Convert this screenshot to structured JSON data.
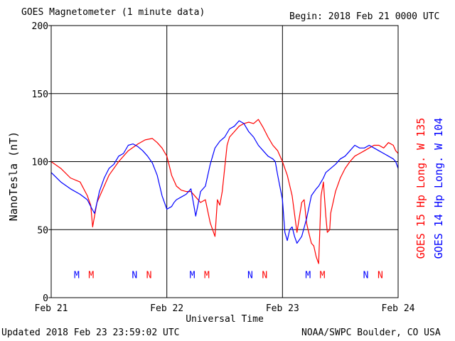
{
  "header": {
    "title": "GOES Magnetometer (1 minute data)",
    "begin": "Begin:  2018 Feb 21 0000 UTC"
  },
  "footer": {
    "updated": "Updated 2018 Feb 23 23:59:02 UTC",
    "source": "NOAA/SWPC Boulder, CO USA"
  },
  "colors": {
    "goes15": "#ff0000",
    "goes14": "#0000ff",
    "grid": "#000000"
  },
  "chart_data": {
    "type": "line",
    "title": "GOES Magnetometer (1 minute data)",
    "xlabel": "Universal Time",
    "ylabel": "NanoTesla (nT)",
    "xlim": [
      0,
      72
    ],
    "ylim": [
      0,
      200
    ],
    "x_unit": "hours since 2018 Feb 21 0000 UTC",
    "x_ticks": [
      {
        "x": 0,
        "label": "Feb 21"
      },
      {
        "x": 24,
        "label": "Feb 22"
      },
      {
        "x": 48,
        "label": "Feb 23"
      },
      {
        "x": 72,
        "label": "Feb 24"
      }
    ],
    "y_ticks": [
      0,
      50,
      100,
      150,
      200
    ],
    "grid": true,
    "series": [
      {
        "name": "GOES 15 Hp  Long. W 135",
        "color": "#ff0000",
        "x": [
          0,
          2,
          4,
          6,
          7.5,
          8.2,
          8.6,
          9,
          9.5,
          10.5,
          12,
          14,
          16,
          18,
          19.5,
          21,
          22,
          23,
          24,
          24.5,
          25,
          26,
          27,
          28,
          29,
          30,
          31,
          32,
          33,
          34,
          34.5,
          35,
          35.5,
          36,
          36.5,
          37,
          38,
          39,
          40,
          41,
          42,
          43,
          44,
          45,
          46,
          46.5,
          47,
          48,
          49,
          50,
          51,
          52,
          52.5,
          53,
          53.3,
          54,
          54.5,
          55,
          55.5,
          56,
          56.5,
          57,
          57.3,
          57.8,
          58,
          58.5,
          59,
          60,
          61,
          62,
          63,
          64,
          65,
          66,
          67,
          68,
          69,
          70,
          71,
          71.5,
          72
        ],
        "y": [
          100,
          95,
          88,
          85,
          75,
          68,
          52,
          60,
          70,
          78,
          90,
          100,
          108,
          113,
          116,
          117,
          114,
          110,
          104,
          97,
          90,
          82,
          79,
          78,
          78,
          74,
          70,
          72,
          55,
          45,
          72,
          68,
          78,
          95,
          112,
          118,
          122,
          126,
          128,
          129,
          128,
          131,
          125,
          118,
          112,
          110,
          108,
          100,
          90,
          75,
          48,
          70,
          72,
          55,
          50,
          40,
          38,
          30,
          25,
          75,
          85,
          60,
          48,
          50,
          62,
          70,
          78,
          88,
          95,
          100,
          104,
          106,
          108,
          110,
          112,
          112,
          110,
          114,
          112,
          108,
          106
        ]
      },
      {
        "name": "GOES 14 Hp  Long. W 104",
        "color": "#0000ff",
        "x": [
          0,
          2,
          4,
          6,
          7.5,
          8.5,
          9,
          9.5,
          10,
          11,
          12,
          13,
          14,
          15,
          16,
          17,
          18,
          19,
          20,
          21,
          22,
          23,
          24,
          25,
          25.5,
          26,
          27,
          28,
          29,
          30,
          31,
          32,
          33,
          34,
          35,
          36,
          37,
          38,
          39,
          40,
          41,
          42,
          43,
          44,
          45,
          46,
          46.5,
          47,
          48,
          48.5,
          49,
          49.5,
          50,
          50.5,
          51,
          52,
          53,
          54,
          55,
          55.5,
          56,
          56.5,
          57,
          58,
          59,
          60,
          61,
          62,
          63,
          64,
          65,
          66,
          67,
          68,
          69,
          70,
          71,
          71.5,
          72
        ],
        "y": [
          92,
          85,
          80,
          76,
          72,
          65,
          62,
          70,
          78,
          88,
          95,
          98,
          104,
          106,
          112,
          113,
          111,
          108,
          104,
          99,
          90,
          75,
          65,
          67,
          70,
          72,
          74,
          76,
          80,
          60,
          78,
          82,
          98,
          110,
          115,
          118,
          124,
          126,
          130,
          128,
          122,
          118,
          112,
          108,
          104,
          102,
          100,
          90,
          72,
          48,
          42,
          50,
          52,
          45,
          40,
          45,
          58,
          75,
          80,
          82,
          85,
          88,
          92,
          95,
          98,
          102,
          104,
          108,
          112,
          110,
          110,
          112,
          110,
          108,
          106,
          104,
          102,
          100,
          95
        ]
      }
    ],
    "annotations": [
      {
        "text": "M",
        "x": 5.3,
        "color": "#0000ff"
      },
      {
        "text": "M",
        "x": 8.3,
        "color": "#ff0000"
      },
      {
        "text": "N",
        "x": 17.3,
        "color": "#0000ff"
      },
      {
        "text": "N",
        "x": 20.3,
        "color": "#ff0000"
      },
      {
        "text": "M",
        "x": 29.3,
        "color": "#0000ff"
      },
      {
        "text": "M",
        "x": 32.3,
        "color": "#ff0000"
      },
      {
        "text": "N",
        "x": 41.3,
        "color": "#0000ff"
      },
      {
        "text": "N",
        "x": 44.3,
        "color": "#ff0000"
      },
      {
        "text": "M",
        "x": 53.3,
        "color": "#0000ff"
      },
      {
        "text": "M",
        "x": 56.3,
        "color": "#ff0000"
      },
      {
        "text": "N",
        "x": 65.3,
        "color": "#0000ff"
      },
      {
        "text": "N",
        "x": 68.3,
        "color": "#ff0000"
      }
    ],
    "annotation_y": 17
  }
}
